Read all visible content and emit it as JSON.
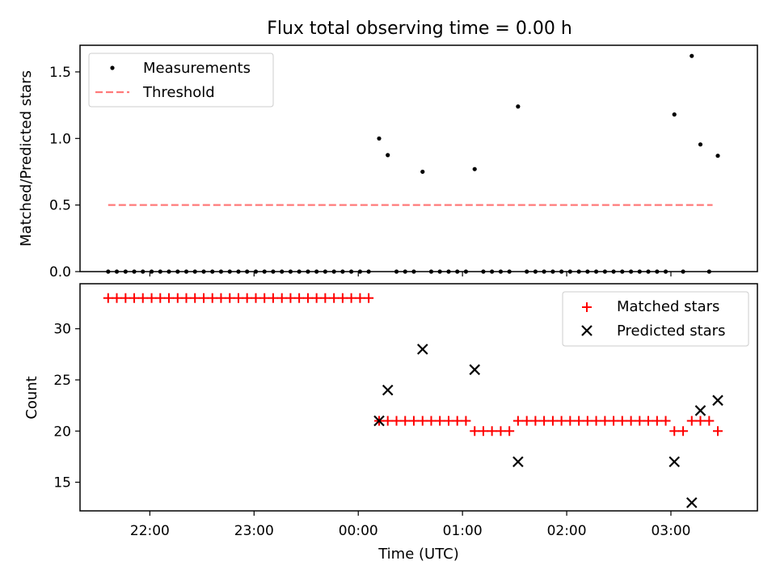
{
  "chart_data": [
    {
      "type": "scatter",
      "title": "Flux total observing time = 0.00 h",
      "xlabel": "",
      "ylabel": "Matched/Predicted stars",
      "ylim": [
        0,
        1.7
      ],
      "xlim_hours": [
        21.33,
        27.83
      ],
      "yticks": [
        0.0,
        0.5,
        1.0,
        1.5
      ],
      "ytick_labels": [
        "0.0",
        "0.5",
        "1.0",
        "1.5"
      ],
      "legend_position": "top-left",
      "series": [
        {
          "name": "Measurements",
          "marker": "dot",
          "color": "#000000",
          "points": [
            [
              21.6,
              0
            ],
            [
              21.683,
              0
            ],
            [
              21.767,
              0
            ],
            [
              21.85,
              0
            ],
            [
              21.933,
              0
            ],
            [
              22.017,
              0
            ],
            [
              22.1,
              0
            ],
            [
              22.183,
              0
            ],
            [
              22.267,
              0
            ],
            [
              22.35,
              0
            ],
            [
              22.433,
              0
            ],
            [
              22.517,
              0
            ],
            [
              22.6,
              0
            ],
            [
              22.683,
              0
            ],
            [
              22.767,
              0
            ],
            [
              22.85,
              0
            ],
            [
              22.933,
              0
            ],
            [
              23.017,
              0
            ],
            [
              23.1,
              0
            ],
            [
              23.183,
              0
            ],
            [
              23.267,
              0
            ],
            [
              23.35,
              0
            ],
            [
              23.433,
              0
            ],
            [
              23.517,
              0
            ],
            [
              23.6,
              0
            ],
            [
              23.683,
              0
            ],
            [
              23.767,
              0
            ],
            [
              23.85,
              0
            ],
            [
              23.933,
              0
            ],
            [
              24.017,
              0
            ],
            [
              24.1,
              0
            ],
            [
              24.2,
              1.0
            ],
            [
              24.283,
              0.875
            ],
            [
              24.367,
              0
            ],
            [
              24.45,
              0
            ],
            [
              24.533,
              0
            ],
            [
              24.617,
              0.75
            ],
            [
              24.7,
              0
            ],
            [
              24.783,
              0
            ],
            [
              24.867,
              0
            ],
            [
              24.95,
              0
            ],
            [
              25.033,
              0
            ],
            [
              25.117,
              0.77
            ],
            [
              25.2,
              0
            ],
            [
              25.283,
              0
            ],
            [
              25.367,
              0
            ],
            [
              25.45,
              0
            ],
            [
              25.533,
              1.24
            ],
            [
              25.617,
              0
            ],
            [
              25.7,
              0
            ],
            [
              25.783,
              0
            ],
            [
              25.867,
              0
            ],
            [
              25.95,
              0
            ],
            [
              26.033,
              0
            ],
            [
              26.117,
              0
            ],
            [
              26.2,
              0
            ],
            [
              26.283,
              0
            ],
            [
              26.367,
              0
            ],
            [
              26.45,
              0
            ],
            [
              26.533,
              0
            ],
            [
              26.617,
              0
            ],
            [
              26.7,
              0
            ],
            [
              26.783,
              0
            ],
            [
              26.867,
              0
            ],
            [
              26.95,
              0
            ],
            [
              27.033,
              1.18
            ],
            [
              27.117,
              0
            ],
            [
              27.2,
              1.62
            ],
            [
              27.283,
              0.955
            ],
            [
              27.367,
              0
            ],
            [
              27.45,
              0.87
            ]
          ]
        },
        {
          "name": "Threshold",
          "style": "dashed",
          "color": "#ff7a7a",
          "points": [
            [
              21.6,
              0.5
            ],
            [
              27.4,
              0.5
            ]
          ]
        }
      ]
    },
    {
      "type": "scatter",
      "title": "",
      "xlabel": "Time (UTC)",
      "ylabel": "Count",
      "ylim": [
        12.2,
        34.4
      ],
      "xlim_hours": [
        21.33,
        27.83
      ],
      "yticks": [
        15,
        20,
        25,
        30
      ],
      "ytick_labels": [
        "15",
        "20",
        "25",
        "30"
      ],
      "xticks_hours": [
        22,
        23,
        24,
        25,
        26,
        27
      ],
      "xtick_labels": [
        "22:00",
        "23:00",
        "00:00",
        "01:00",
        "02:00",
        "03:00"
      ],
      "legend_position": "top-right",
      "series": [
        {
          "name": "Matched stars",
          "marker": "plus",
          "color": "#ff0000",
          "points": [
            [
              21.6,
              33
            ],
            [
              21.683,
              33
            ],
            [
              21.767,
              33
            ],
            [
              21.85,
              33
            ],
            [
              21.933,
              33
            ],
            [
              22.017,
              33
            ],
            [
              22.1,
              33
            ],
            [
              22.183,
              33
            ],
            [
              22.267,
              33
            ],
            [
              22.35,
              33
            ],
            [
              22.433,
              33
            ],
            [
              22.517,
              33
            ],
            [
              22.6,
              33
            ],
            [
              22.683,
              33
            ],
            [
              22.767,
              33
            ],
            [
              22.85,
              33
            ],
            [
              22.933,
              33
            ],
            [
              23.017,
              33
            ],
            [
              23.1,
              33
            ],
            [
              23.183,
              33
            ],
            [
              23.267,
              33
            ],
            [
              23.35,
              33
            ],
            [
              23.433,
              33
            ],
            [
              23.517,
              33
            ],
            [
              23.6,
              33
            ],
            [
              23.683,
              33
            ],
            [
              23.767,
              33
            ],
            [
              23.85,
              33
            ],
            [
              23.933,
              33
            ],
            [
              24.017,
              33
            ],
            [
              24.1,
              33
            ],
            [
              24.2,
              21
            ],
            [
              24.283,
              21
            ],
            [
              24.367,
              21
            ],
            [
              24.45,
              21
            ],
            [
              24.533,
              21
            ],
            [
              24.617,
              21
            ],
            [
              24.7,
              21
            ],
            [
              24.783,
              21
            ],
            [
              24.867,
              21
            ],
            [
              24.95,
              21
            ],
            [
              25.033,
              21
            ],
            [
              25.117,
              20
            ],
            [
              25.2,
              20
            ],
            [
              25.283,
              20
            ],
            [
              25.367,
              20
            ],
            [
              25.45,
              20
            ],
            [
              25.533,
              21
            ],
            [
              25.617,
              21
            ],
            [
              25.7,
              21
            ],
            [
              25.783,
              21
            ],
            [
              25.867,
              21
            ],
            [
              25.95,
              21
            ],
            [
              26.033,
              21
            ],
            [
              26.117,
              21
            ],
            [
              26.2,
              21
            ],
            [
              26.283,
              21
            ],
            [
              26.367,
              21
            ],
            [
              26.45,
              21
            ],
            [
              26.533,
              21
            ],
            [
              26.617,
              21
            ],
            [
              26.7,
              21
            ],
            [
              26.783,
              21
            ],
            [
              26.867,
              21
            ],
            [
              26.95,
              21
            ],
            [
              27.033,
              20
            ],
            [
              27.117,
              20
            ],
            [
              27.2,
              21
            ],
            [
              27.283,
              21
            ],
            [
              27.367,
              21
            ],
            [
              27.45,
              20
            ]
          ]
        },
        {
          "name": "Predicted stars",
          "marker": "x",
          "color": "#000000",
          "points": [
            [
              24.2,
              21
            ],
            [
              24.283,
              24
            ],
            [
              24.617,
              28
            ],
            [
              25.117,
              26
            ],
            [
              25.533,
              17
            ],
            [
              27.033,
              17
            ],
            [
              27.2,
              13
            ],
            [
              27.283,
              22
            ],
            [
              27.45,
              23
            ]
          ]
        }
      ]
    }
  ]
}
